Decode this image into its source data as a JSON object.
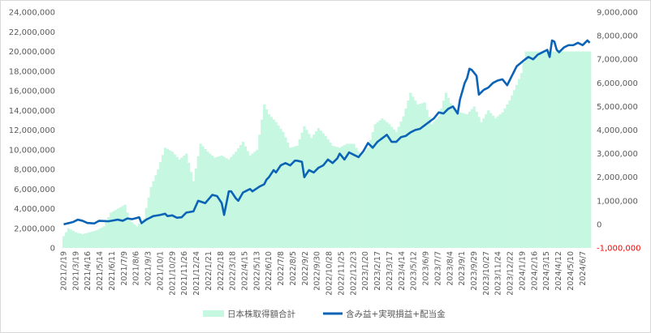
{
  "chart_data": {
    "type": "bar+line",
    "title": "",
    "colors": {
      "bars": "#c6f7e1",
      "line": "#0b63b6",
      "negative_tick": "#ff0000",
      "axis_text": "#595959",
      "frame": "#d9d9d9"
    },
    "y_left": {
      "min": 0,
      "max": 24000000,
      "step": 2000000,
      "tick_labels": [
        "0",
        "2,000,000",
        "4,000,000",
        "6,000,000",
        "8,000,000",
        "10,000,000",
        "12,000,000",
        "14,000,000",
        "16,000,000",
        "18,000,000",
        "20,000,000",
        "22,000,000",
        "24,000,000"
      ]
    },
    "y_right": {
      "min": -1000000,
      "max": 9000000,
      "step": 1000000,
      "tick_labels": [
        "-1,000,000",
        "0",
        "1,000,000",
        "2,000,000",
        "3,000,000",
        "4,000,000",
        "5,000,000",
        "6,000,000",
        "7,000,000",
        "8,000,000",
        "9,000,000"
      ]
    },
    "x_tick_labels": [
      "2021/2/19",
      "2021/3/19",
      "2021/4/16",
      "2021/5/14",
      "2021/6/11",
      "2021/7/9",
      "2021/8/6",
      "2021/9/3",
      "2021/10/1",
      "2021/10/29",
      "2021/11/26",
      "2021/12/24",
      "2022/1/21",
      "2022/2/18",
      "2022/3/18",
      "2022/4/15",
      "2022/5/13",
      "2022/6/10",
      "2022/7/8",
      "2022/8/5",
      "2022/9/2",
      "2022/9/30",
      "2022/10/28",
      "2022/11/25",
      "2022/12/23",
      "2023/1/20",
      "2023/2/17",
      "2023/3/17",
      "2023/4/14",
      "2023/5/12",
      "2023/6/9",
      "2023/7/7",
      "2023/8/4",
      "2023/9/1",
      "2023/9/29",
      "2023/10/27",
      "2023/11/24",
      "2023/12/22",
      "2024/1/19",
      "2024/2/16",
      "2024/3/15",
      "2024/4/12",
      "2024/5/10",
      "2024/6/7"
    ],
    "bar_anchors": [
      [
        0,
        1200000
      ],
      [
        2,
        2000000
      ],
      [
        5,
        1600000
      ],
      [
        8,
        1400000
      ],
      [
        11,
        1600000
      ],
      [
        14,
        1800000
      ],
      [
        17,
        2200000
      ],
      [
        20,
        3600000
      ],
      [
        23,
        4000000
      ],
      [
        26,
        4400000
      ],
      [
        28,
        2800000
      ],
      [
        31,
        2200000
      ],
      [
        34,
        3000000
      ],
      [
        37,
        6200000
      ],
      [
        40,
        8000000
      ],
      [
        43,
        10200000
      ],
      [
        46,
        9800000
      ],
      [
        49,
        9000000
      ],
      [
        52,
        9600000
      ],
      [
        55,
        6800000
      ],
      [
        58,
        10600000
      ],
      [
        61,
        9800000
      ],
      [
        64,
        9200000
      ],
      [
        67,
        9400000
      ],
      [
        70,
        9000000
      ],
      [
        73,
        9800000
      ],
      [
        76,
        10800000
      ],
      [
        79,
        9400000
      ],
      [
        82,
        10000000
      ],
      [
        85,
        14600000
      ],
      [
        87,
        13600000
      ],
      [
        90,
        12800000
      ],
      [
        93,
        11800000
      ],
      [
        96,
        10200000
      ],
      [
        99,
        10400000
      ],
      [
        102,
        12400000
      ],
      [
        105,
        11200000
      ],
      [
        108,
        12200000
      ],
      [
        111,
        11400000
      ],
      [
        114,
        10400000
      ],
      [
        117,
        10200000
      ],
      [
        120,
        10600000
      ],
      [
        123,
        10600000
      ],
      [
        126,
        9400000
      ],
      [
        129,
        10200000
      ],
      [
        132,
        12600000
      ],
      [
        135,
        13200000
      ],
      [
        138,
        12600000
      ],
      [
        141,
        11800000
      ],
      [
        144,
        13400000
      ],
      [
        147,
        15800000
      ],
      [
        150,
        14600000
      ],
      [
        153,
        14800000
      ],
      [
        156,
        12600000
      ],
      [
        159,
        13400000
      ],
      [
        162,
        15800000
      ],
      [
        165,
        14200000
      ],
      [
        168,
        13800000
      ],
      [
        171,
        13600000
      ],
      [
        174,
        14400000
      ],
      [
        177,
        12800000
      ],
      [
        180,
        14000000
      ],
      [
        183,
        13200000
      ],
      [
        186,
        13800000
      ],
      [
        189,
        15000000
      ],
      [
        192,
        16600000
      ],
      [
        194,
        17800000
      ],
      [
        196,
        20000000
      ]
    ],
    "line_anchors": [
      [
        0,
        0
      ],
      [
        2,
        50000
      ],
      [
        4,
        100000
      ],
      [
        6,
        200000
      ],
      [
        8,
        150000
      ],
      [
        10,
        60000
      ],
      [
        13,
        40000
      ],
      [
        15,
        150000
      ],
      [
        19,
        130000
      ],
      [
        23,
        200000
      ],
      [
        25,
        150000
      ],
      [
        27,
        250000
      ],
      [
        29,
        220000
      ],
      [
        32,
        300000
      ],
      [
        33,
        50000
      ],
      [
        35,
        200000
      ],
      [
        38,
        350000
      ],
      [
        41,
        400000
      ],
      [
        43,
        450000
      ],
      [
        44,
        350000
      ],
      [
        46,
        380000
      ],
      [
        48,
        280000
      ],
      [
        50,
        300000
      ],
      [
        52,
        500000
      ],
      [
        55,
        550000
      ],
      [
        57,
        1000000
      ],
      [
        60,
        900000
      ],
      [
        63,
        1250000
      ],
      [
        65,
        1200000
      ],
      [
        67,
        900000
      ],
      [
        68,
        400000
      ],
      [
        70,
        1400000
      ],
      [
        71,
        1400000
      ],
      [
        73,
        1100000
      ],
      [
        74,
        1000000
      ],
      [
        76,
        1350000
      ],
      [
        79,
        1500000
      ],
      [
        80,
        1400000
      ],
      [
        83,
        1600000
      ],
      [
        85,
        1700000
      ],
      [
        86,
        1900000
      ],
      [
        87,
        2000000
      ],
      [
        89,
        2300000
      ],
      [
        90,
        2200000
      ],
      [
        92,
        2500000
      ],
      [
        94,
        2600000
      ],
      [
        96,
        2500000
      ],
      [
        98,
        2700000
      ],
      [
        99,
        2700000
      ],
      [
        101,
        2650000
      ],
      [
        102,
        2000000
      ],
      [
        104,
        2300000
      ],
      [
        106,
        2200000
      ],
      [
        108,
        2400000
      ],
      [
        110,
        2500000
      ],
      [
        112,
        2750000
      ],
      [
        114,
        2600000
      ],
      [
        116,
        2800000
      ],
      [
        117,
        3000000
      ],
      [
        119,
        2750000
      ],
      [
        121,
        3050000
      ],
      [
        123,
        2950000
      ],
      [
        125,
        2850000
      ],
      [
        127,
        3100000
      ],
      [
        129,
        3450000
      ],
      [
        131,
        3250000
      ],
      [
        133,
        3500000
      ],
      [
        135,
        3650000
      ],
      [
        137,
        3800000
      ],
      [
        139,
        3500000
      ],
      [
        141,
        3500000
      ],
      [
        143,
        3700000
      ],
      [
        145,
        3750000
      ],
      [
        147,
        3900000
      ],
      [
        149,
        4000000
      ],
      [
        151,
        4050000
      ],
      [
        153,
        4200000
      ],
      [
        155,
        4350000
      ],
      [
        157,
        4500000
      ],
      [
        159,
        4750000
      ],
      [
        161,
        4700000
      ],
      [
        163,
        4900000
      ],
      [
        165,
        5000000
      ],
      [
        167,
        4700000
      ],
      [
        168,
        5300000
      ],
      [
        170,
        6000000
      ],
      [
        171,
        6200000
      ],
      [
        172,
        6600000
      ],
      [
        173,
        6550000
      ],
      [
        175,
        6300000
      ],
      [
        176,
        5500000
      ],
      [
        178,
        5700000
      ],
      [
        180,
        5800000
      ],
      [
        182,
        6000000
      ],
      [
        184,
        6100000
      ],
      [
        186,
        6150000
      ],
      [
        188,
        5900000
      ],
      [
        190,
        6300000
      ],
      [
        192,
        6700000
      ],
      [
        195,
        6950000
      ],
      [
        197,
        7100000
      ],
      [
        199,
        7000000
      ],
      [
        201,
        7200000
      ],
      [
        203,
        7300000
      ],
      [
        205,
        7400000
      ],
      [
        206,
        7100000
      ],
      [
        207,
        7800000
      ],
      [
        208,
        7750000
      ],
      [
        209,
        7400000
      ],
      [
        210,
        7300000
      ],
      [
        212,
        7500000
      ],
      [
        214,
        7600000
      ],
      [
        216,
        7600000
      ],
      [
        218,
        7700000
      ],
      [
        220,
        7600000
      ],
      [
        222,
        7800000
      ],
      [
        223,
        7700000
      ]
    ],
    "legend": {
      "placement": "bottom",
      "entries": [
        {
          "name": "日本株取得額合計",
          "kind": "bar"
        },
        {
          "name": "含み益+実現損益+配当金",
          "kind": "line"
        }
      ]
    }
  }
}
